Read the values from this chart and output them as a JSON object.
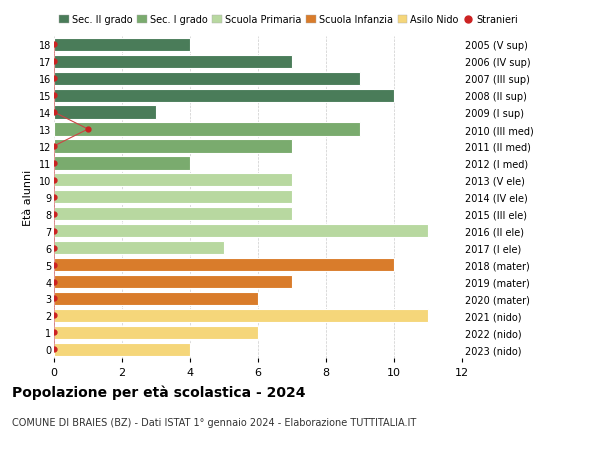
{
  "ages": [
    18,
    17,
    16,
    15,
    14,
    13,
    12,
    11,
    10,
    9,
    8,
    7,
    6,
    5,
    4,
    3,
    2,
    1,
    0
  ],
  "values": [
    4,
    7,
    9,
    10,
    3,
    9,
    7,
    4,
    7,
    7,
    7,
    11,
    5,
    10,
    7,
    6,
    11,
    6,
    4
  ],
  "right_labels": [
    "2005 (V sup)",
    "2006 (IV sup)",
    "2007 (III sup)",
    "2008 (II sup)",
    "2009 (I sup)",
    "2010 (III med)",
    "2011 (II med)",
    "2012 (I med)",
    "2013 (V ele)",
    "2014 (IV ele)",
    "2015 (III ele)",
    "2016 (II ele)",
    "2017 (I ele)",
    "2018 (mater)",
    "2019 (mater)",
    "2020 (mater)",
    "2021 (nido)",
    "2022 (nido)",
    "2023 (nido)"
  ],
  "bar_colors": [
    "#4a7c59",
    "#4a7c59",
    "#4a7c59",
    "#4a7c59",
    "#4a7c59",
    "#7aab6e",
    "#7aab6e",
    "#7aab6e",
    "#b8d8a0",
    "#b8d8a0",
    "#b8d8a0",
    "#b8d8a0",
    "#b8d8a0",
    "#d97c2b",
    "#d97c2b",
    "#d97c2b",
    "#f5d67a",
    "#f5d67a",
    "#f5d67a"
  ],
  "legend_labels": [
    "Sec. II grado",
    "Sec. I grado",
    "Scuola Primaria",
    "Scuola Infanzia",
    "Asilo Nido",
    "Stranieri"
  ],
  "legend_colors": [
    "#4a7c59",
    "#7aab6e",
    "#b8d8a0",
    "#d97c2b",
    "#f5d67a",
    "#cc2222"
  ],
  "ylabel": "Età alunni",
  "title": "Popolazione per età scolastica - 2024",
  "subtitle": "COMUNE DI BRAIES (BZ) - Dati ISTAT 1° gennaio 2024 - Elaborazione TUTTITALIA.IT",
  "xlim": [
    0,
    12
  ],
  "xticks": [
    0,
    2,
    4,
    6,
    8,
    10,
    12
  ],
  "background_color": "#ffffff",
  "grid_color": "#cccccc",
  "bar_edge_color": "#ffffff",
  "stranieri_color": "#cc2222",
  "stranieri_line_color": "#cc4444",
  "bar_height": 0.78
}
